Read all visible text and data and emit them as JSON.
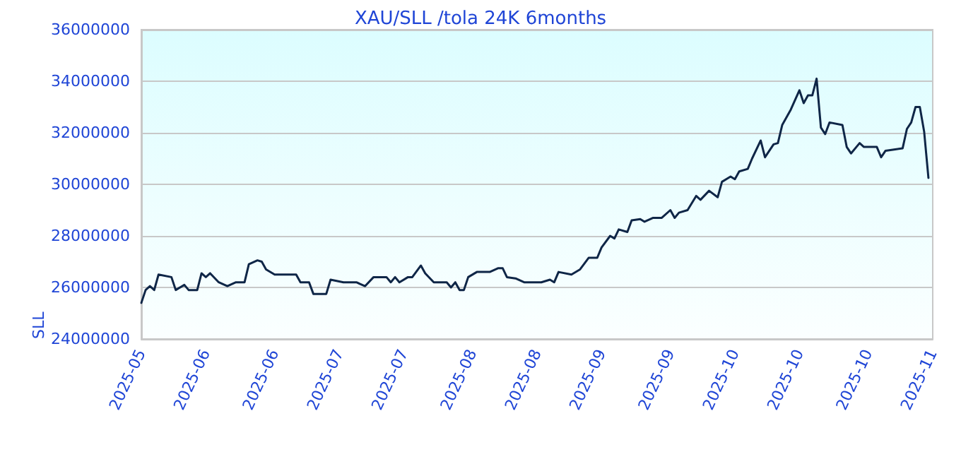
{
  "chart_data": {
    "type": "line",
    "title": "XAU/SLL /tola 24K 6months",
    "ylabel": "SLL",
    "x": [
      "2025-05-01",
      "2025-05-02",
      "2025-05-03",
      "2025-05-04",
      "2025-05-05",
      "2025-05-08",
      "2025-05-09",
      "2025-05-11",
      "2025-05-12",
      "2025-05-14",
      "2025-05-15",
      "2025-05-16",
      "2025-05-17",
      "2025-05-19",
      "2025-05-21",
      "2025-05-23",
      "2025-05-25",
      "2025-05-26",
      "2025-05-28",
      "2025-05-29",
      "2025-05-30",
      "2025-06-01",
      "2025-06-06",
      "2025-06-07",
      "2025-06-09",
      "2025-06-10",
      "2025-06-13",
      "2025-06-14",
      "2025-06-17",
      "2025-06-20",
      "2025-06-22",
      "2025-06-24",
      "2025-06-27",
      "2025-06-28",
      "2025-06-29",
      "2025-06-30",
      "2025-07-02",
      "2025-07-03",
      "2025-07-05",
      "2025-07-06",
      "2025-07-08",
      "2025-07-11",
      "2025-07-12",
      "2025-07-13",
      "2025-07-14",
      "2025-07-15",
      "2025-07-16",
      "2025-07-18",
      "2025-07-21",
      "2025-07-23",
      "2025-07-24",
      "2025-07-25",
      "2025-07-27",
      "2025-07-29",
      "2025-08-02",
      "2025-08-04",
      "2025-08-05",
      "2025-08-06",
      "2025-08-09",
      "2025-08-11",
      "2025-08-13",
      "2025-08-15",
      "2025-08-16",
      "2025-08-18",
      "2025-08-19",
      "2025-08-20",
      "2025-08-22",
      "2025-08-23",
      "2025-08-25",
      "2025-08-26",
      "2025-08-28",
      "2025-08-30",
      "2025-09-01",
      "2025-09-02",
      "2025-09-03",
      "2025-09-05",
      "2025-09-07",
      "2025-09-08",
      "2025-09-10",
      "2025-09-12",
      "2025-09-13",
      "2025-09-15",
      "2025-09-16",
      "2025-09-17",
      "2025-09-19",
      "2025-09-20",
      "2025-09-22",
      "2025-09-23",
      "2025-09-25",
      "2025-09-26",
      "2025-09-27",
      "2025-09-29",
      "2025-10-01",
      "2025-10-02",
      "2025-10-03",
      "2025-10-04",
      "2025-10-05",
      "2025-10-06",
      "2025-10-07",
      "2025-10-08",
      "2025-10-11",
      "2025-10-12",
      "2025-10-13",
      "2025-10-15",
      "2025-10-16",
      "2025-10-19",
      "2025-10-20",
      "2025-10-21",
      "2025-10-23",
      "2025-10-25",
      "2025-10-26",
      "2025-10-27",
      "2025-10-28",
      "2025-10-29",
      "2025-10-30",
      "2025-10-31"
    ],
    "series": [
      {
        "color": "#0f2647",
        "values": [
          25400000,
          25900000,
          26050000,
          25900000,
          26500000,
          26400000,
          25900000,
          26100000,
          25900000,
          25900000,
          26550000,
          26400000,
          26550000,
          26200000,
          26050000,
          26200000,
          26200000,
          26900000,
          27050000,
          27000000,
          26700000,
          26500000,
          26500000,
          26200000,
          26200000,
          25750000,
          25750000,
          26300000,
          26200000,
          26200000,
          26050000,
          26400000,
          26400000,
          26200000,
          26400000,
          26200000,
          26400000,
          26400000,
          26850000,
          26550000,
          26200000,
          26200000,
          26000000,
          26200000,
          25900000,
          25900000,
          26400000,
          26600000,
          26600000,
          26750000,
          26750000,
          26400000,
          26350000,
          26200000,
          26200000,
          26300000,
          26200000,
          26600000,
          26500000,
          26700000,
          27150000,
          27150000,
          27550000,
          28000000,
          27900000,
          28250000,
          28150000,
          28600000,
          28650000,
          28550000,
          28700000,
          28700000,
          29000000,
          28700000,
          28900000,
          29000000,
          29550000,
          29400000,
          29750000,
          29500000,
          30100000,
          30300000,
          30200000,
          30500000,
          30600000,
          31000000,
          31700000,
          31050000,
          31550000,
          31600000,
          32300000,
          32900000,
          33650000,
          33150000,
          33450000,
          33450000,
          34100000,
          32200000,
          31950000,
          32400000,
          32300000,
          31450000,
          31200000,
          31600000,
          31450000,
          31450000,
          31050000,
          31300000,
          31350000,
          31400000,
          32150000,
          32400000,
          33000000,
          33000000,
          32050000,
          30250000
        ]
      }
    ],
    "xlim": [
      "2025-05-01",
      "2025-11-01"
    ],
    "xticks": [
      {
        "value": "2025-05-01",
        "label": "2025-05"
      },
      {
        "value": "2025-05-16",
        "label": "2025-06"
      },
      {
        "value": "2025-06-01",
        "label": "2025-06"
      },
      {
        "value": "2025-06-16",
        "label": "2025-07"
      },
      {
        "value": "2025-07-01",
        "label": "2025-07"
      },
      {
        "value": "2025-07-17",
        "label": "2025-08"
      },
      {
        "value": "2025-08-01",
        "label": "2025-08"
      },
      {
        "value": "2025-08-16",
        "label": "2025-09"
      },
      {
        "value": "2025-09-01",
        "label": "2025-09"
      },
      {
        "value": "2025-09-16",
        "label": "2025-10"
      },
      {
        "value": "2025-10-01",
        "label": "2025-10"
      },
      {
        "value": "2025-10-17",
        "label": "2025-10"
      },
      {
        "value": "2025-11-01",
        "label": "2025-11"
      }
    ],
    "ylim": [
      24000000,
      36000000
    ],
    "yticks": [
      24000000,
      26000000,
      28000000,
      30000000,
      32000000,
      34000000,
      36000000
    ],
    "grid": "y",
    "marker": "none",
    "line_style": "solid"
  }
}
